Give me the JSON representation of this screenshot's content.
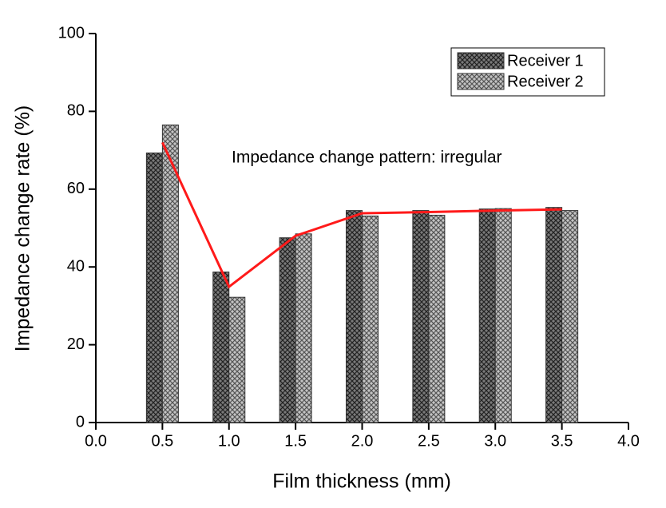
{
  "chart_data": {
    "type": "bar",
    "xlabel": "Film thickness (mm)",
    "ylabel": "Impedance change rate (%)",
    "annotation": "Impedance change pattern: irregular",
    "x": [
      0.5,
      1.0,
      1.5,
      2.0,
      2.5,
      3.0,
      3.5
    ],
    "series": [
      {
        "name": "Receiver 1",
        "color": "#7a7a7a",
        "values": [
          69.3,
          38.7,
          47.5,
          54.5,
          54.5,
          54.9,
          55.3
        ]
      },
      {
        "name": "Receiver 2",
        "color": "#c4c4c4",
        "values": [
          76.5,
          32.2,
          48.5,
          53.1,
          53.3,
          55.0,
          54.5
        ]
      }
    ],
    "line": {
      "color": "#ff1a1a",
      "x": [
        0.5,
        1.0,
        1.5,
        2.0,
        2.5,
        3.0,
        3.5
      ],
      "values": [
        72.0,
        34.9,
        48.0,
        53.8,
        54.1,
        54.5,
        54.8
      ]
    },
    "xlim": [
      0,
      4
    ],
    "xticks": [
      {
        "value": 0,
        "label": "0.0"
      },
      {
        "value": 0.5,
        "label": "0.5"
      },
      {
        "value": 1,
        "label": "1.0"
      },
      {
        "value": 1.5,
        "label": "1.5"
      },
      {
        "value": 2,
        "label": "2.0"
      },
      {
        "value": 2.5,
        "label": "2.5"
      },
      {
        "value": 3,
        "label": "3.0"
      },
      {
        "value": 3.5,
        "label": "3.5"
      },
      {
        "value": 4,
        "label": "4.0"
      }
    ],
    "ylim": [
      0,
      100
    ],
    "yticks": [
      0,
      20,
      40,
      60,
      80,
      100
    ],
    "legend": "upper right"
  }
}
